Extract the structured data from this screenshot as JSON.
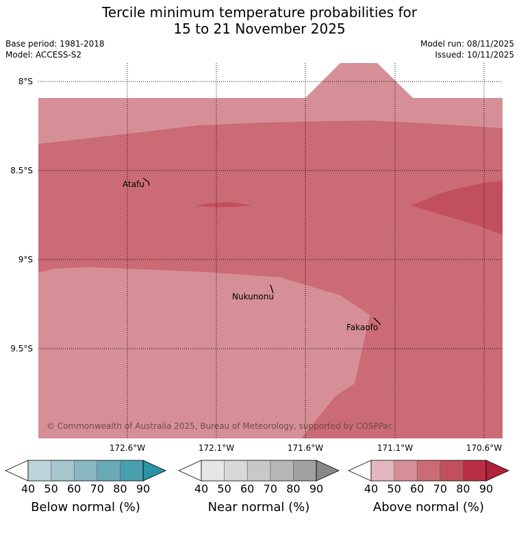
{
  "title_line1": "Tercile minimum temperature probabilities for",
  "title_line2": "15 to 21 November 2025",
  "base_period": "Base period: 1981-2018",
  "model": "Model: ACCESS-S2",
  "model_run": "Model run: 08/11/2025",
  "issued": "Issued: 10/11/2025",
  "lat_labels": [
    "8°S",
    "8.5°S",
    "9°S",
    "9.5°S"
  ],
  "lon_labels": [
    "172.6°W",
    "172.1°W",
    "171.6°W",
    "171.1°W",
    "170.6°W"
  ],
  "places": [
    "Atafu",
    "Nukunonu",
    "Fakaofo"
  ],
  "copyright": "© Commonwealth of Australia 2025, Bureau of Meteorology, supported by COSPPac",
  "colorbars": [
    {
      "label": "Below normal (%)",
      "ticks": [
        "40",
        "50",
        "60",
        "70",
        "80",
        "90"
      ],
      "colors": [
        "#bcd4da",
        "#a5c6cc",
        "#89b7c1",
        "#6aa9b6",
        "#4a9fae",
        "#2b93a3"
      ]
    },
    {
      "label": "Near normal (%)",
      "ticks": [
        "40",
        "50",
        "60",
        "70",
        "80",
        "90"
      ],
      "colors": [
        "#e6e6e6",
        "#d8d8d8",
        "#c8c8c8",
        "#b6b6b6",
        "#a0a0a0",
        "#888888"
      ]
    },
    {
      "label": "Above normal (%)",
      "ticks": [
        "40",
        "50",
        "60",
        "70",
        "80",
        "90"
      ],
      "colors": [
        "#e3b7bd",
        "#d68f96",
        "#cb6b76",
        "#c2505c",
        "#ba2e45",
        "#b3213b"
      ]
    }
  ],
  "map_colors": {
    "c50": "#d68f96",
    "c60": "#cb6b76",
    "c70": "#c2505c"
  }
}
